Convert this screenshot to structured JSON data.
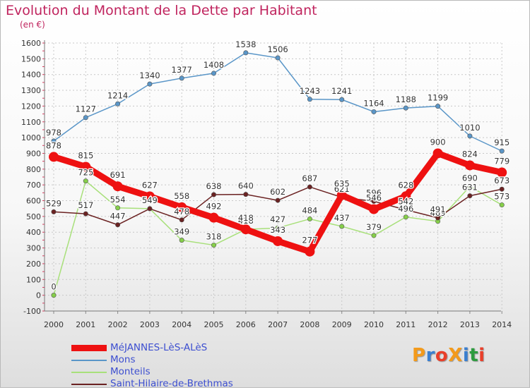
{
  "title": "Evolution du Montant de la Dette par Habitant",
  "unit_label": "(en €)",
  "logo_text": "ProXiti",
  "logo_colors": [
    "#f39a1b",
    "#3a7fd0",
    "#e93f2a",
    "#f39a1b",
    "#3a7fd0",
    "#2d9b3f",
    "#e93f2a"
  ],
  "chart_data": {
    "type": "line",
    "x": [
      "2000",
      "2001",
      "2002",
      "2003",
      "2004",
      "2005",
      "2006",
      "2007",
      "2008",
      "2009",
      "2010",
      "2011",
      "2012",
      "2013",
      "2014"
    ],
    "ylim": [
      -100,
      1600
    ],
    "yticks": [
      -100,
      0,
      100,
      200,
      300,
      400,
      500,
      600,
      700,
      800,
      900,
      1000,
      1100,
      1200,
      1300,
      1400,
      1500,
      1600
    ],
    "grid": true,
    "legend_position": "bottom-left",
    "series": [
      {
        "name": "MéJANNES-LèS-ALèS",
        "color": "#ee1111",
        "emphasis": true,
        "values": [
          878,
          815,
          691,
          627,
          558,
          492,
          418,
          343,
          277,
          635,
          546,
          628,
          900,
          824,
          779
        ]
      },
      {
        "name": "Mons",
        "color": "#5a96c8",
        "values": [
          978,
          1127,
          1214,
          1340,
          1377,
          1408,
          1538,
          1506,
          1243,
          1241,
          1164,
          1188,
          1199,
          1010,
          915
        ]
      },
      {
        "name": "Monteils",
        "color": "#a8e07a",
        "marker_color": "#86cf4a",
        "values": [
          0,
          725,
          554,
          549,
          349,
          318,
          418,
          427,
          484,
          437,
          379,
          496,
          469,
          690,
          573
        ]
      },
      {
        "name": "Saint-Hilaire-de-Brethmas",
        "color": "#6b2222",
        "values": [
          529,
          517,
          447,
          549,
          478,
          638,
          640,
          602,
          687,
          621,
          596,
          542,
          491,
          631,
          673
        ]
      }
    ]
  }
}
